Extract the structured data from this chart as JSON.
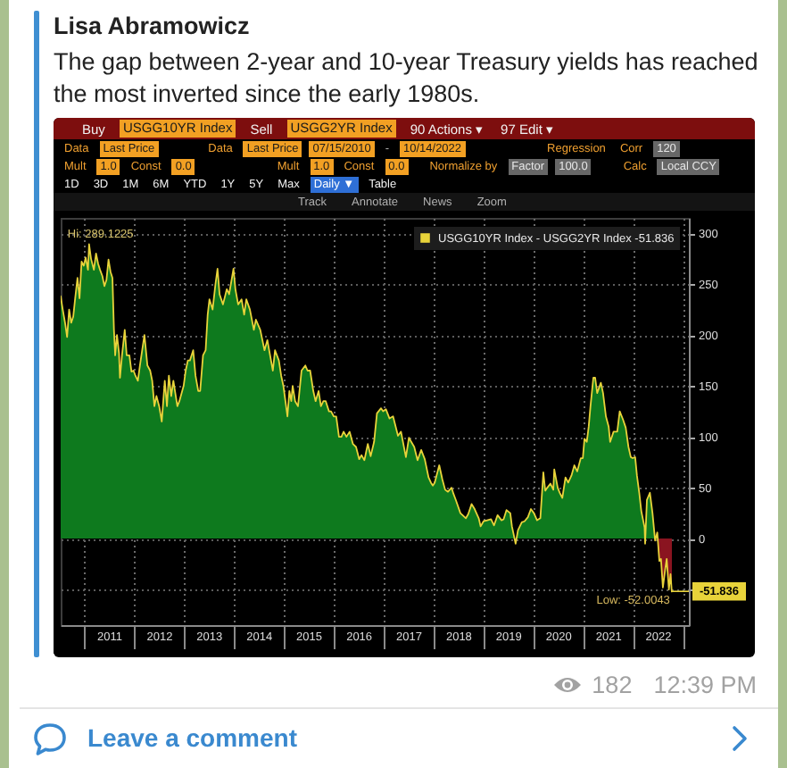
{
  "chart_data": {
    "type": "area",
    "subtitle": "Lisa Abramowicz",
    "title": "The gap between 2-year and 10-year Treasury yields has reached the most inverted since the early 1980s.",
    "x": [
      "2010-07-15",
      "2010-07-30",
      "2010-08-16",
      "2010-08-31",
      "2010-09-15",
      "2010-09-30",
      "2010-10-15",
      "2010-10-29",
      "2010-11-15",
      "2010-11-30",
      "2010-12-15",
      "2010-12-31",
      "2011-01-14",
      "2011-01-31",
      "2011-02-08",
      "2011-02-22",
      "2011-03-15",
      "2011-03-31",
      "2011-04-15",
      "2011-04-29",
      "2011-05-16",
      "2011-05-31",
      "2011-06-15",
      "2011-06-30",
      "2011-07-15",
      "2011-07-29",
      "2011-08-09",
      "2011-08-18",
      "2011-08-31",
      "2011-09-15",
      "2011-09-22",
      "2011-10-07",
      "2011-10-27",
      "2011-11-10",
      "2011-11-30",
      "2011-12-15",
      "2011-12-30",
      "2012-01-13",
      "2012-01-31",
      "2012-02-15",
      "2012-03-19",
      "2012-04-10",
      "2012-04-30",
      "2012-05-15",
      "2012-05-31",
      "2012-06-15",
      "2012-07-05",
      "2012-07-24",
      "2012-08-15",
      "2012-08-31",
      "2012-09-14",
      "2012-10-01",
      "2012-10-17",
      "2012-11-15",
      "2012-11-30",
      "2012-12-31",
      "2013-01-15",
      "2013-01-31",
      "2013-02-15",
      "2013-03-11",
      "2013-03-28",
      "2013-04-17",
      "2013-05-01",
      "2013-05-22",
      "2013-06-10",
      "2013-06-25",
      "2013-07-08",
      "2013-07-31",
      "2013-08-21",
      "2013-09-05",
      "2013-09-20",
      "2013-10-15",
      "2013-11-12",
      "2013-11-29",
      "2013-12-31",
      "2014-01-14",
      "2014-02-03",
      "2014-02-28",
      "2014-03-19",
      "2014-04-04",
      "2014-04-30",
      "2014-05-29",
      "2014-06-13",
      "2014-07-15",
      "2014-08-15",
      "2014-09-05",
      "2014-09-18",
      "2014-10-15",
      "2014-10-31",
      "2014-11-28",
      "2014-12-15",
      "2014-12-31",
      "2015-01-15",
      "2015-01-30",
      "2015-02-13",
      "2015-02-27",
      "2015-03-09",
      "2015-03-27",
      "2015-04-17",
      "2015-05-13",
      "2015-06-10",
      "2015-06-26",
      "2015-07-15",
      "2015-08-07",
      "2015-08-24",
      "2015-09-15",
      "2015-10-02",
      "2015-10-20",
      "2015-11-06",
      "2015-11-30",
      "2015-12-15",
      "2016-01-04",
      "2016-01-22",
      "2016-02-11",
      "2016-02-29",
      "2016-03-16",
      "2016-04-06",
      "2016-04-29",
      "2016-05-23",
      "2016-06-15",
      "2016-07-08",
      "2016-07-25",
      "2016-08-15",
      "2016-09-09",
      "2016-09-30",
      "2016-10-25",
      "2016-11-15",
      "2016-12-15",
      "2016-12-30",
      "2017-01-20",
      "2017-02-15",
      "2017-03-13",
      "2017-04-18",
      "2017-05-10",
      "2017-06-15",
      "2017-07-07",
      "2017-08-15",
      "2017-09-08",
      "2017-10-05",
      "2017-10-31",
      "2017-11-28",
      "2017-12-15",
      "2017-12-29",
      "2018-01-12",
      "2018-02-14",
      "2018-03-09",
      "2018-03-29",
      "2018-04-19",
      "2018-05-15",
      "2018-05-29",
      "2018-06-15",
      "2018-07-19",
      "2018-08-28",
      "2018-09-14",
      "2018-10-09",
      "2018-10-31",
      "2018-11-30",
      "2018-12-14",
      "2019-01-04",
      "2019-01-31",
      "2019-02-28",
      "2019-03-22",
      "2019-04-17",
      "2019-05-16",
      "2019-05-31",
      "2019-06-21",
      "2019-07-19",
      "2019-07-31",
      "2019-08-27",
      "2019-09-13",
      "2019-10-11",
      "2019-10-31",
      "2019-11-25",
      "2019-12-17",
      "2020-01-08",
      "2020-01-31",
      "2020-02-24",
      "2020-03-17",
      "2020-03-31",
      "2020-04-15",
      "2020-05-08",
      "2020-05-29",
      "2020-06-05",
      "2020-06-30",
      "2020-07-15",
      "2020-08-03",
      "2020-08-26",
      "2020-09-15",
      "2020-10-09",
      "2020-10-30",
      "2020-11-20",
      "2020-12-16",
      "2020-12-31",
      "2021-01-12",
      "2021-01-29",
      "2021-02-12",
      "2021-02-25",
      "2021-03-18",
      "2021-03-31",
      "2021-04-15",
      "2021-05-12",
      "2021-05-28",
      "2021-06-18",
      "2021-07-08",
      "2021-07-19",
      "2021-08-13",
      "2021-09-09",
      "2021-09-27",
      "2021-10-21",
      "2021-11-10",
      "2021-11-30",
      "2021-12-17",
      "2021-12-31",
      "2022-01-18",
      "2022-01-31",
      "2022-02-17",
      "2022-03-04",
      "2022-03-28",
      "2022-04-01",
      "2022-04-14",
      "2022-05-06",
      "2022-05-25",
      "2022-06-13",
      "2022-06-29",
      "2022-07-14",
      "2022-07-26",
      "2022-08-09",
      "2022-08-26",
      "2022-09-06",
      "2022-09-22",
      "2022-10-04",
      "2022-10-13",
      "2022-10-14"
    ],
    "series": [
      {
        "name": "USGG10YR Index - USGG2YR Index -51.836",
        "color": "#e8d33a",
        "values": [
          238,
          225,
          212,
          198,
          225,
          212,
          218,
          236,
          256,
          236,
          272,
          268,
          276,
          264,
          289.1225,
          275,
          264,
          280,
          270,
          264,
          258,
          248,
          254,
          274,
          262,
          256,
          205,
          180,
          200,
          182,
          158,
          180,
          205,
          180,
          180,
          164,
          165,
          160,
          155,
          170,
          200,
          170,
          165,
          155,
          130,
          140,
          130,
          115,
          155,
          130,
          160,
          140,
          155,
          130,
          135,
          150,
          165,
          175,
          175,
          185,
          160,
          145,
          145,
          180,
          185,
          220,
          235,
          225,
          250,
          265,
          240,
          230,
          245,
          240,
          265,
          245,
          230,
          235,
          220,
          235,
          225,
          205,
          215,
          205,
          185,
          195,
          185,
          165,
          185,
          175,
          160,
          150,
          135,
          120,
          145,
          135,
          150,
          135,
          130,
          165,
          170,
          165,
          165,
          145,
          135,
          145,
          130,
          135,
          135,
          125,
          125,
          120,
          120,
          100,
          100,
          105,
          100,
          105,
          93,
          90,
          78,
          82,
          77,
          93,
          81,
          95,
          123,
          128,
          125,
          127,
          118,
          120,
          101,
          105,
          80,
          99,
          90,
          77,
          87,
          78,
          60,
          55,
          52,
          55,
          72,
          58,
          48,
          46,
          50,
          44,
          38,
          25,
          20,
          24,
          34,
          29,
          20,
          12,
          17,
          18,
          19,
          13,
          23,
          18,
          19,
          28,
          25,
          12,
          -5,
          8,
          16,
          17,
          21,
          29,
          25,
          18,
          20,
          65,
          47,
          50,
          54,
          48,
          68,
          50,
          45,
          40,
          60,
          55,
          62,
          72,
          66,
          79,
          79,
          98,
          95,
          110,
          130,
          158,
          158,
          143,
          153,
          143,
          120,
          110,
          95,
          105,
          105,
          125,
          117,
          109,
          90,
          80,
          79,
          80,
          62,
          45,
          27,
          11,
          -5,
          38,
          45,
          25,
          -2,
          6,
          -22,
          -20,
          -48,
          -30,
          -20,
          -50,
          -35,
          -52.0043,
          -51.836
        ]
      }
    ],
    "colors": [
      "#0e7a1e",
      "#8a1420"
    ],
    "xlim": [
      "2010-07-15",
      "2023-02-15"
    ],
    "xticks": [
      {
        "value": "2011-01-01",
        "label": null
      },
      {
        "value": "2011-07-02",
        "label": "2011"
      },
      {
        "value": "2012-01-01",
        "label": null
      },
      {
        "value": "2012-07-02",
        "label": "2012"
      },
      {
        "value": "2013-01-01",
        "label": null
      },
      {
        "value": "2013-07-02",
        "label": "2013"
      },
      {
        "value": "2014-01-01",
        "label": null
      },
      {
        "value": "2014-07-02",
        "label": "2014"
      },
      {
        "value": "2015-01-01",
        "label": null
      },
      {
        "value": "2015-07-02",
        "label": "2015"
      },
      {
        "value": "2016-01-01",
        "label": null
      },
      {
        "value": "2016-07-02",
        "label": "2016"
      },
      {
        "value": "2017-01-01",
        "label": null
      },
      {
        "value": "2017-07-02",
        "label": "2017"
      },
      {
        "value": "2018-01-01",
        "label": null
      },
      {
        "value": "2018-07-02",
        "label": "2018"
      },
      {
        "value": "2019-01-01",
        "label": null
      },
      {
        "value": "2019-07-02",
        "label": "2019"
      },
      {
        "value": "2020-01-01",
        "label": null
      },
      {
        "value": "2020-07-02",
        "label": "2020"
      },
      {
        "value": "2021-01-01",
        "label": null
      },
      {
        "value": "2021-07-02",
        "label": "2021"
      },
      {
        "value": "2022-01-01",
        "label": null
      },
      {
        "value": "2022-07-02",
        "label": "2022"
      },
      {
        "value": "2023-01-01",
        "label": null
      }
    ],
    "ylim": [
      -85,
      315
    ],
    "yticks": [
      {
        "value": -50,
        "label": null
      },
      0,
      50,
      100,
      150,
      200,
      250,
      300
    ],
    "grid": true,
    "legend": "top right",
    "annotations": [
      {
        "text": "Hi: 289.1225",
        "x": "2011-02-08",
        "y": 289.1225
      },
      {
        "text": "Low: -52.0043",
        "x": "2022-10-13",
        "y": -52.0043
      },
      {
        "text": "-51.836",
        "x": "2022-10-14",
        "y": -51.836
      },
      "Buy",
      "USGG10YR Index",
      "Sell",
      "USGG2YR Index",
      "90 Actions ▾",
      "97 Edit ▾",
      "Data",
      "Last Price",
      "Data",
      "Last Price",
      "07/15/2010",
      "-",
      "10/14/2022",
      "Regression",
      "Corr",
      "120",
      "Mult",
      "1.0",
      "Const",
      "0.0",
      "Mult",
      "1.0",
      "Const",
      "0.0",
      "Normalize by",
      "Factor",
      "100.0",
      "Calc",
      "Local CCY",
      "1D",
      "3D",
      "1M",
      "6M",
      "YTD",
      "1Y",
      "5Y",
      "Max",
      "Daily ▼",
      "Table",
      "Track",
      "Annotate",
      "News",
      "Zoom",
      "182",
      "12:39 PM",
      "Leave a comment"
    ]
  }
}
